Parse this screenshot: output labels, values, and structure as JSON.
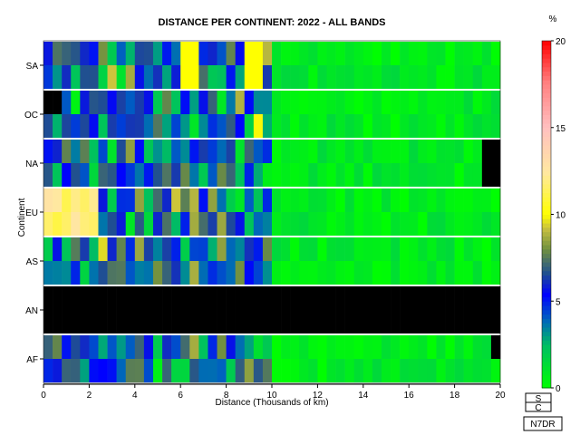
{
  "chart_data": {
    "type": "heatmap",
    "title": "DISTANCE PER CONTINENT: 2022 - ALL BANDS",
    "xlabel": "Distance (Thousands of km)",
    "ylabel": "Continent",
    "xlim": [
      0,
      20
    ],
    "x_ticks": [
      "0",
      "2",
      "4",
      "6",
      "8",
      "10",
      "12",
      "14",
      "16",
      "18",
      "20"
    ],
    "continents": [
      "SA",
      "OC",
      "NA",
      "EU",
      "AS",
      "AN",
      "AF"
    ],
    "colorbar": {
      "label": "%",
      "range": [
        0,
        20
      ],
      "ticks": [
        "0",
        "5",
        "10",
        "15",
        "20"
      ],
      "stops": [
        [
          0,
          "#00ff00"
        ],
        [
          0.12,
          "#00c060"
        ],
        [
          0.2,
          "#0060c0"
        ],
        [
          0.27,
          "#0000ff"
        ],
        [
          0.33,
          "#205090"
        ],
        [
          0.4,
          "#709040"
        ],
        [
          0.46,
          "#c8c040"
        ],
        [
          0.5,
          "#ffff00"
        ],
        [
          0.62,
          "#ffe8a0"
        ],
        [
          0.75,
          "#ffc0c0"
        ],
        [
          0.88,
          "#ff8080"
        ],
        [
          1,
          "#ff0000"
        ]
      ]
    },
    "legend_boxes": [
      "S",
      "C"
    ],
    "callsign": "N7DR"
  }
}
